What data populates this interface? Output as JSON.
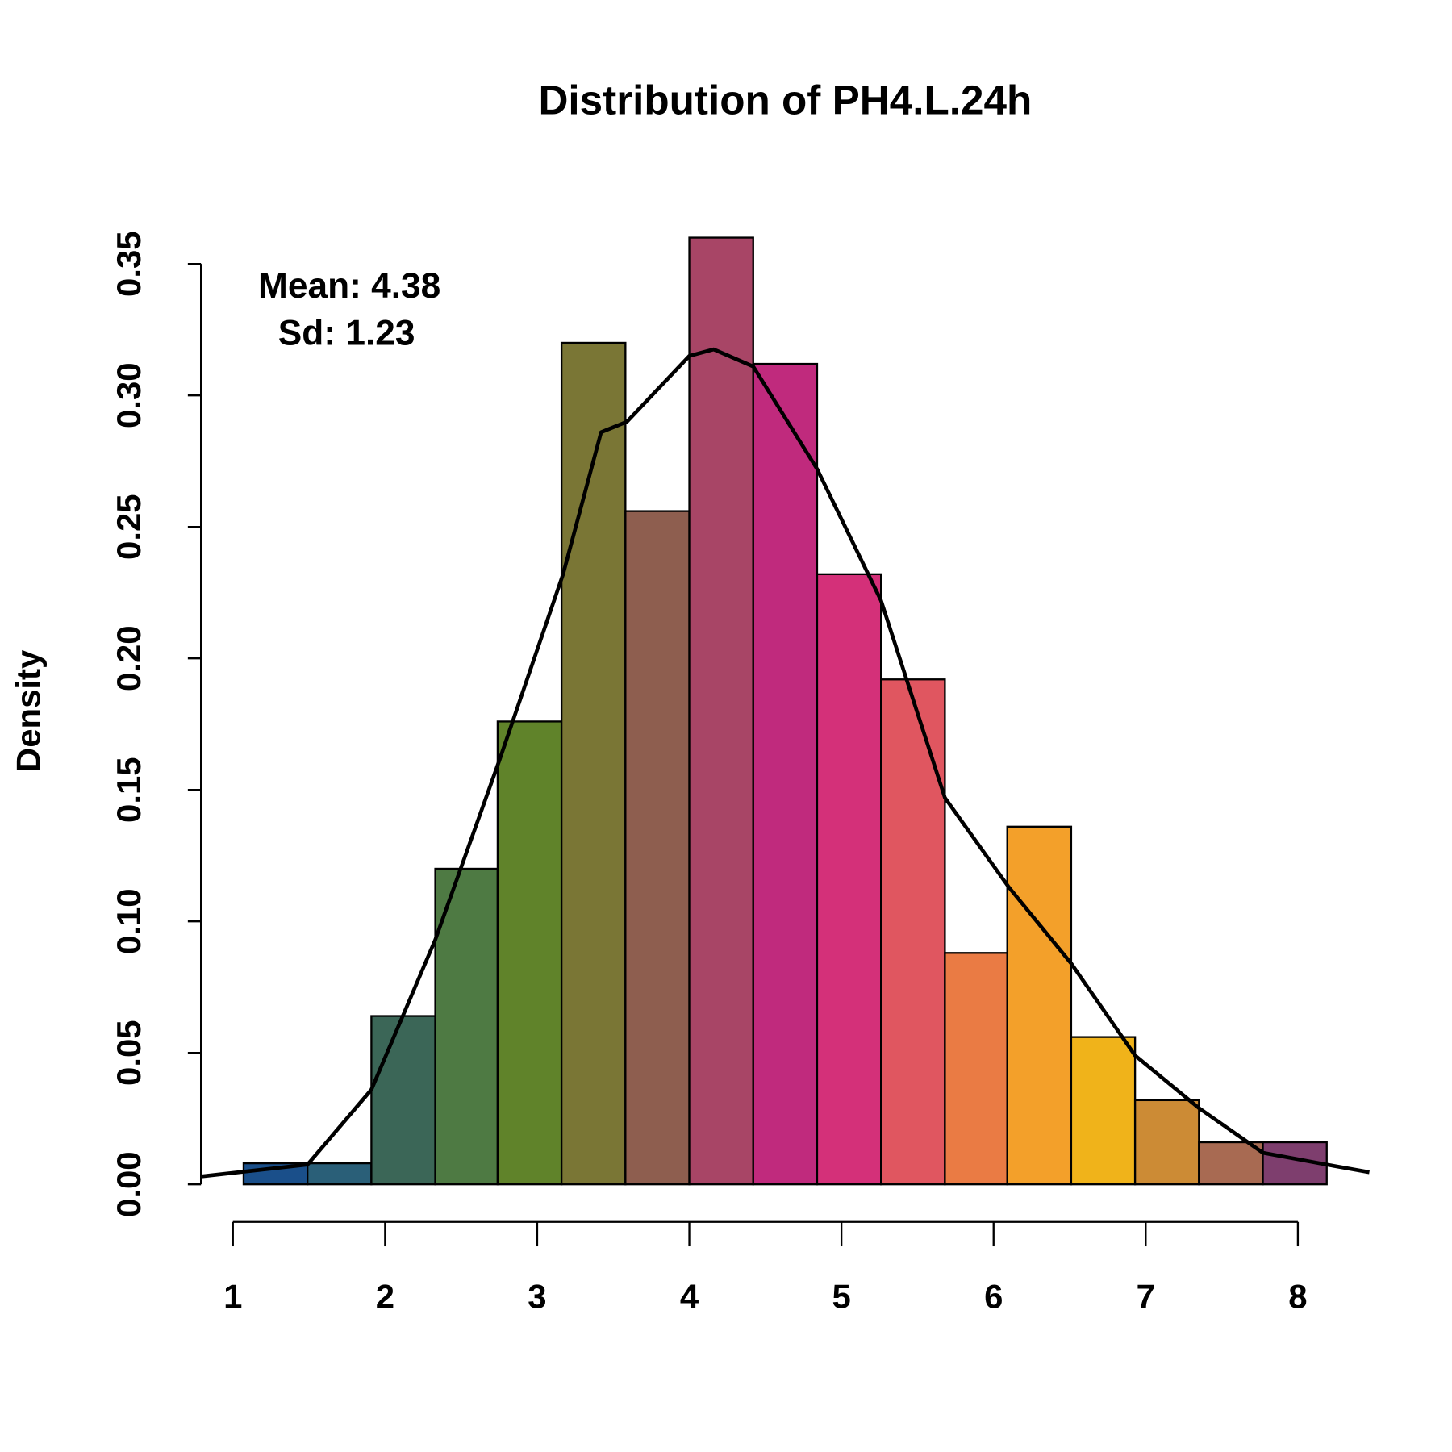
{
  "chart_data": {
    "type": "histogram",
    "title": "Distribution of PH4.L.24h",
    "y_label": "Density",
    "annotations": [
      "Mean: 4.38",
      "Sd: 1.23"
    ],
    "bins": [
      1.07,
      1.49,
      1.91,
      2.33,
      2.74,
      3.16,
      3.58,
      4.0,
      4.42,
      4.84,
      5.26,
      5.68,
      6.09,
      6.51,
      6.93,
      7.35,
      7.77,
      8.19
    ],
    "values": [
      0.008,
      0.008,
      0.064,
      0.12,
      0.176,
      0.32,
      0.256,
      0.36,
      0.312,
      0.232,
      0.192,
      0.088,
      0.136,
      0.056,
      0.032,
      0.016,
      0.016
    ],
    "colors": [
      "#1a4f8a",
      "#2a5f78",
      "#3b6657",
      "#4e7a43",
      "#60832a",
      "#7a7635",
      "#8e5e4f",
      "#a84566",
      "#c02a7d",
      "#d43079",
      "#e05660",
      "#ea7b44",
      "#f3a02a",
      "#f0b31a",
      "#cc8b35",
      "#a86a52",
      "#7e3e6e"
    ],
    "density": {
      "color": "#000000",
      "x": [
        0.79,
        1.49,
        1.91,
        2.33,
        2.75,
        3.17,
        3.42,
        3.59,
        4.0,
        4.16,
        4.42,
        4.84,
        5.26,
        5.68,
        6.1,
        6.51,
        6.93,
        7.35,
        7.77,
        8.19,
        8.47
      ],
      "values": [
        0.003,
        0.0075,
        0.036,
        0.093,
        0.161,
        0.232,
        0.286,
        0.29,
        0.315,
        0.3175,
        0.311,
        0.272,
        0.222,
        0.147,
        0.113,
        0.084,
        0.049,
        0.029,
        0.012,
        0.0075,
        0.0046
      ]
    },
    "xlim": [
      0.79,
      8.47
    ],
    "xticks": [
      1,
      2,
      3,
      4,
      5,
      6,
      7,
      8
    ],
    "ylim": [
      0,
      0.35
    ],
    "yticks": [
      {
        "value": 0,
        "label": "0.00"
      },
      {
        "value": 0.05,
        "label": "0.05"
      },
      {
        "value": 0.1,
        "label": "0.10"
      },
      {
        "value": 0.15,
        "label": "0.15"
      },
      {
        "value": 0.2,
        "label": "0.20"
      },
      {
        "value": 0.25,
        "label": "0.25"
      },
      {
        "value": 0.3,
        "label": "0.30"
      },
      {
        "value": 0.35,
        "label": "0.35"
      }
    ]
  }
}
